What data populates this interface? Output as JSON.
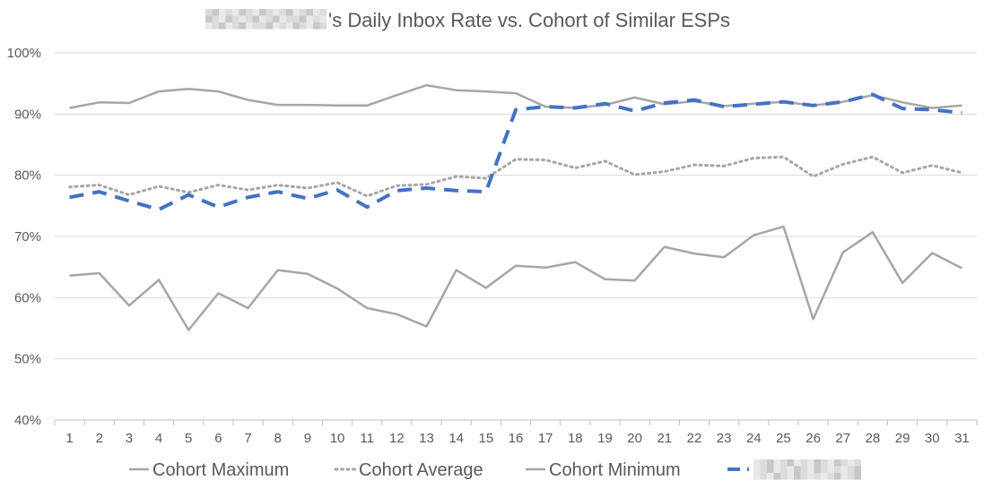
{
  "chart_data": {
    "type": "line",
    "title_redacted": true,
    "title": "'s Daily Inbox Rate vs. Cohort of Similar ESPs",
    "x": [
      1,
      2,
      3,
      4,
      5,
      6,
      7,
      8,
      9,
      10,
      11,
      12,
      13,
      14,
      15,
      16,
      17,
      18,
      19,
      20,
      21,
      22,
      23,
      24,
      25,
      26,
      27,
      28,
      29,
      30,
      31
    ],
    "x_tick_labels": [
      "1",
      "2",
      "3",
      "4",
      "5",
      "6",
      "7",
      "8",
      "9",
      "10",
      "11",
      "12",
      "13",
      "14",
      "15",
      "16",
      "17",
      "18",
      "19",
      "20",
      "21",
      "22",
      "23",
      "24",
      "25",
      "26",
      "27",
      "28",
      "29",
      "30",
      "31"
    ],
    "ylim": [
      40,
      100
    ],
    "y_ticks": [
      40,
      50,
      60,
      70,
      80,
      90,
      100
    ],
    "y_tick_labels": [
      "40%",
      "50%",
      "60%",
      "70%",
      "80%",
      "90%",
      "100%"
    ],
    "grid": true,
    "legend_position": "bottom",
    "series": [
      {
        "name": "Cohort Maximum",
        "style": "solid",
        "color": "#a6a6a6",
        "values": [
          91.0,
          91.9,
          91.8,
          93.7,
          94.1,
          93.7,
          92.3,
          91.5,
          91.5,
          91.4,
          91.4,
          93.1,
          94.7,
          93.9,
          93.7,
          93.4,
          91.2,
          91.0,
          91.5,
          92.7,
          91.6,
          92.1,
          91.3,
          91.7,
          92.0,
          91.4,
          92.0,
          93.1,
          91.9,
          91.0,
          91.4
        ]
      },
      {
        "name": "Cohort Average",
        "style": "dotted",
        "color": "#a6a6a6",
        "values": [
          78.1,
          78.4,
          76.8,
          78.2,
          77.2,
          78.4,
          77.6,
          78.4,
          77.9,
          78.8,
          76.6,
          78.3,
          78.5,
          79.8,
          79.5,
          82.6,
          82.5,
          81.2,
          82.3,
          80.1,
          80.6,
          81.7,
          81.5,
          82.8,
          83.0,
          79.8,
          81.8,
          83.0,
          80.4,
          81.6,
          80.4
        ]
      },
      {
        "name": "Cohort Minimum",
        "style": "solid",
        "color": "#a6a6a6",
        "values": [
          63.6,
          64.0,
          58.7,
          62.9,
          54.7,
          60.7,
          58.3,
          64.5,
          63.9,
          61.5,
          58.3,
          57.3,
          55.3,
          64.5,
          61.6,
          65.2,
          64.9,
          65.8,
          63.0,
          62.8,
          68.3,
          67.2,
          66.6,
          70.2,
          71.6,
          56.5,
          67.4,
          70.7,
          62.4,
          67.3,
          64.8
        ]
      },
      {
        "name_redacted": true,
        "style": "dashed",
        "color": "#4472c4",
        "values": [
          76.4,
          77.3,
          75.8,
          74.4,
          76.8,
          74.8,
          76.4,
          77.3,
          76.2,
          77.6,
          74.8,
          77.5,
          77.9,
          77.5,
          77.3,
          90.7,
          91.2,
          91.0,
          91.7,
          90.5,
          91.8,
          92.3,
          91.2,
          91.6,
          92.0,
          91.4,
          92.0,
          93.2,
          90.9,
          90.7,
          90.2
        ]
      }
    ]
  }
}
